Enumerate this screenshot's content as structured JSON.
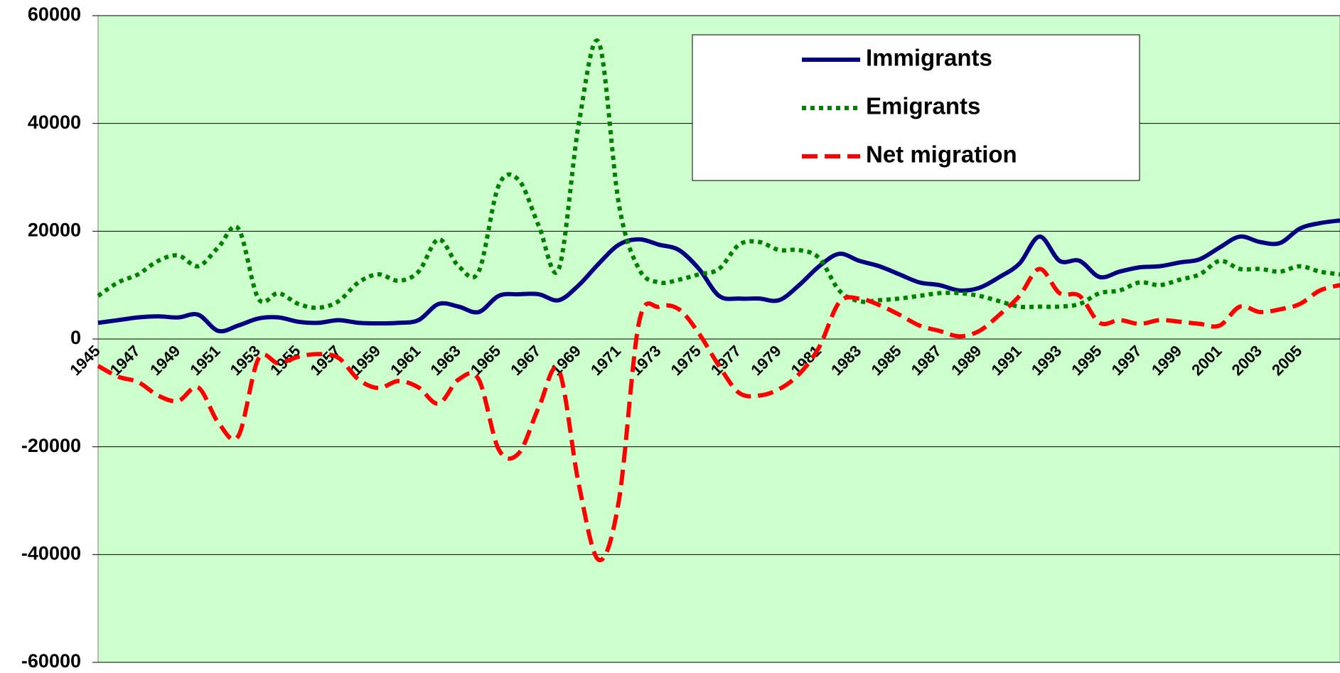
{
  "chart_data": {
    "type": "line",
    "categories": [
      "1945",
      null,
      "1947",
      null,
      "1949",
      null,
      "1951",
      null,
      "1953",
      null,
      "1955",
      null,
      "1957",
      null,
      "1959",
      null,
      "1961",
      null,
      "1963",
      null,
      "1965",
      null,
      "1967",
      null,
      "1969",
      null,
      "1971",
      null,
      "1973",
      null,
      "1975",
      null,
      "1977",
      null,
      "1979",
      null,
      "1981",
      null,
      "1983",
      null,
      "1985",
      null,
      "1987",
      null,
      "1989",
      null,
      "1991",
      null,
      "1993",
      null,
      "1995",
      null,
      "1997",
      null,
      "1999",
      null,
      "2001",
      null,
      "2003",
      null,
      "2005",
      null,
      null
    ],
    "series": [
      {
        "name": "Immigrants",
        "color": "#000080",
        "style": "solid",
        "values": [
          3000,
          3500,
          4000,
          4200,
          4000,
          4500,
          1500,
          2500,
          3800,
          4000,
          3200,
          3000,
          3500,
          3000,
          2900,
          3000,
          3500,
          6500,
          6000,
          5000,
          8000,
          8300,
          8300,
          7200,
          10000,
          14000,
          17500,
          18500,
          17500,
          16500,
          13000,
          8000,
          7500,
          7500,
          7200,
          10000,
          13500,
          15800,
          14500,
          13500,
          12000,
          10500,
          10000,
          9000,
          9500,
          11500,
          14000,
          19000,
          14500,
          14500,
          11500,
          12500,
          13300,
          13500,
          14200,
          14800,
          17000,
          19000,
          18000,
          17800,
          20500,
          21500,
          22000
        ]
      },
      {
        "name": "Emigrants",
        "color": "#008000",
        "style": "dotted",
        "values": [
          8000,
          10500,
          12000,
          14500,
          15500,
          13500,
          17000,
          20500,
          7500,
          8500,
          6500,
          5800,
          7000,
          10500,
          12000,
          10800,
          12500,
          18500,
          13500,
          12500,
          28500,
          29500,
          21000,
          13000,
          40000,
          55000,
          25000,
          13000,
          10500,
          11000,
          12000,
          13000,
          17500,
          18000,
          16500,
          16500,
          15000,
          9000,
          7000,
          7200,
          7500,
          8000,
          8500,
          8500,
          8000,
          7000,
          6000,
          6000,
          6000,
          6500,
          8500,
          9000,
          10500,
          10000,
          11000,
          12000,
          14500,
          13000,
          13000,
          12500,
          13500,
          12500,
          12000
        ]
      },
      {
        "name": "Net migration",
        "color": "#ff0000",
        "style": "dashed",
        "values": [
          -5000,
          -7000,
          -8000,
          -10500,
          -11500,
          -9000,
          -15500,
          -18000,
          -3700,
          -4500,
          -3300,
          -2800,
          -3500,
          -7500,
          -9100,
          -7800,
          -9000,
          -12000,
          -7500,
          -7500,
          -20500,
          -21200,
          -12700,
          -5800,
          -27000,
          -41000,
          -30000,
          3000,
          6000,
          5500,
          1000,
          -5000,
          -10000,
          -10500,
          -9300,
          -6500,
          -1500,
          6800,
          7500,
          6300,
          4500,
          2500,
          1500,
          500,
          1500,
          4500,
          8000,
          13000,
          8500,
          8000,
          3000,
          3500,
          2800,
          3500,
          3200,
          2800,
          2500,
          6000,
          5000,
          5500,
          6500,
          9000,
          10000
        ]
      }
    ],
    "ylim": [
      -60000,
      60000
    ],
    "yticks": [
      -60000,
      -40000,
      -20000,
      0,
      20000,
      40000,
      60000
    ],
    "grid": true,
    "legend": "top-right",
    "background": "#ccffcc"
  }
}
